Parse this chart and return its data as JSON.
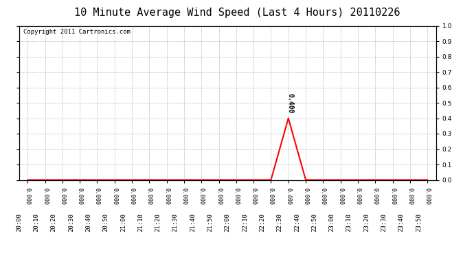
{
  "title": "10 Minute Average Wind Speed (Last 4 Hours) 20110226",
  "copyright": "Copyright 2011 Cartronics.com",
  "background_color": "#ffffff",
  "plot_bg_color": "#ffffff",
  "grid_color": "#bbbbbb",
  "line_color": "#ff0000",
  "text_color": "#000000",
  "times": [
    "20:00",
    "20:10",
    "20:20",
    "20:30",
    "20:40",
    "20:50",
    "21:00",
    "21:10",
    "21:20",
    "21:30",
    "21:40",
    "21:50",
    "22:00",
    "22:10",
    "22:20",
    "22:30",
    "22:40",
    "22:50",
    "23:00",
    "23:10",
    "23:20",
    "23:30",
    "23:40",
    "23:50"
  ],
  "values": [
    0.0,
    0.0,
    0.0,
    0.0,
    0.0,
    0.0,
    0.0,
    0.0,
    0.0,
    0.0,
    0.0,
    0.0,
    0.0,
    0.0,
    0.0,
    0.4,
    0.0,
    0.0,
    0.0,
    0.0,
    0.0,
    0.0,
    0.0,
    0.0
  ],
  "ylim": [
    0.0,
    1.0
  ],
  "yticks": [
    0.0,
    0.1,
    0.2,
    0.3,
    0.4,
    0.5,
    0.6,
    0.7,
    0.8,
    0.9,
    1.0
  ],
  "peak_index": 15,
  "peak_label": "0.400",
  "title_fontsize": 11,
  "copyright_fontsize": 6.5,
  "tick_fontsize": 6.5,
  "label_fontsize": 6,
  "annotation_fontsize": 7
}
